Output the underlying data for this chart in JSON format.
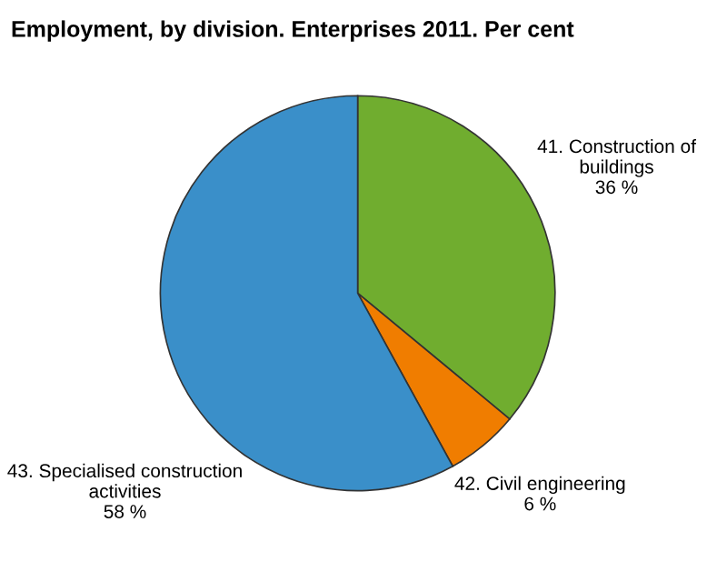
{
  "chart_data": {
    "type": "pie",
    "title": "Employment, by division. Enterprises 2011. Per cent",
    "categories": [
      "41. Construction of\nbuildings",
      "42. Civil engineering",
      "43. Specialised construction\nactivities"
    ],
    "values": [
      36,
      6,
      58
    ],
    "value_labels": [
      "36 %",
      "6 %",
      "58 %"
    ],
    "colors": [
      "#70ad2f",
      "#f07d00",
      "#3a8fc9"
    ]
  }
}
